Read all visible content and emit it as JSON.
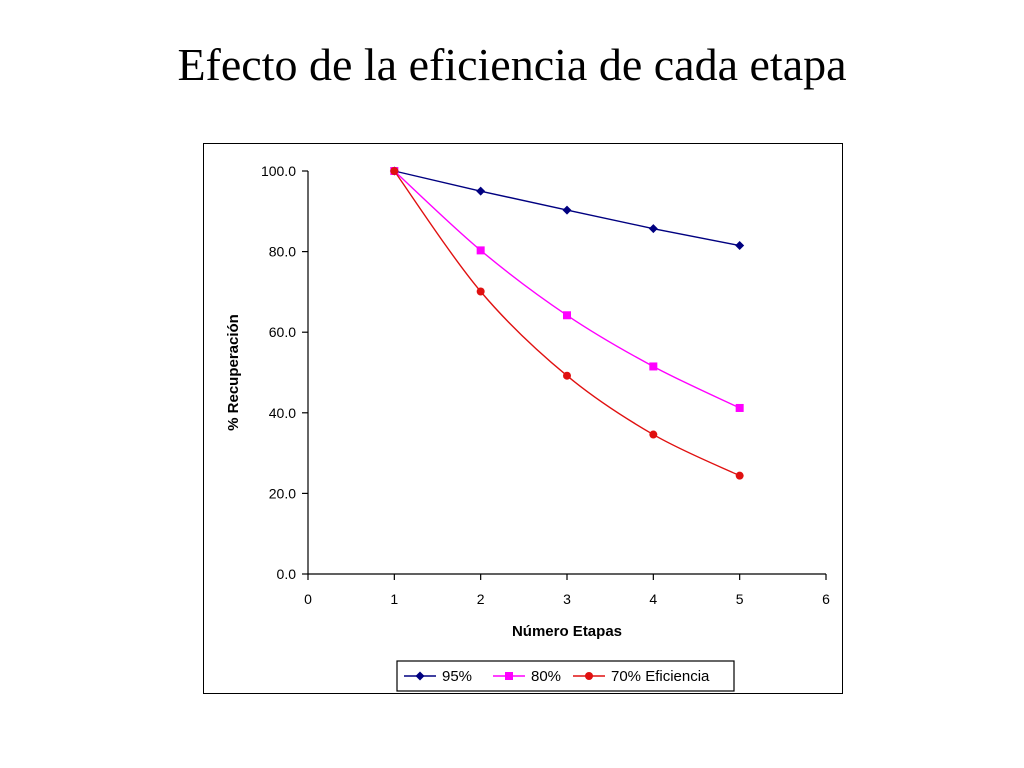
{
  "title": "Efecto de la eficiencia de cada etapa",
  "chart_data": {
    "type": "line",
    "xlabel": "Número Etapas",
    "ylabel": "% Recuperación",
    "xlim": [
      0,
      6
    ],
    "ylim": [
      0,
      100
    ],
    "xticks": [
      "0",
      "1",
      "2",
      "3",
      "4",
      "5",
      "6"
    ],
    "yticks": [
      "0.0",
      "20.0",
      "40.0",
      "60.0",
      "80.0",
      "100.0"
    ],
    "grid": false,
    "legend_position": "bottom",
    "x": [
      1,
      2,
      3,
      4,
      5
    ],
    "series": [
      {
        "name": "95%",
        "values": [
          100.0,
          95.0,
          90.3,
          85.7,
          81.5
        ],
        "color": "#000080",
        "marker": "diamond"
      },
      {
        "name": "80%",
        "values": [
          100.0,
          80.3,
          64.2,
          51.5,
          41.2
        ],
        "color": "#ff00ff",
        "marker": "square"
      },
      {
        "name": "70% Eficiencia",
        "values": [
          100.0,
          70.1,
          49.2,
          34.6,
          24.4
        ],
        "color": "#e01010",
        "marker": "circle"
      }
    ]
  }
}
